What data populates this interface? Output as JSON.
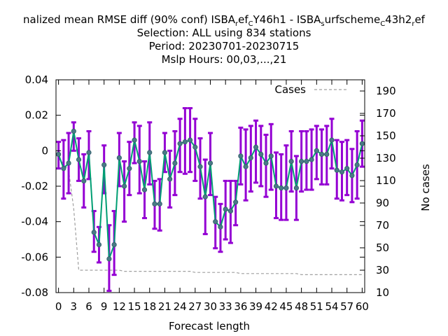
{
  "chart_data": {
    "type": "line",
    "title": {
      "prefix": "nalized mean RMSE diff (90% conf) ISBA",
      "sub1": "r",
      "mid1": "ef",
      "sub2": "C",
      "mid2": "Y46h1 - ISBA",
      "sub3": "s",
      "mid3": "urfscheme",
      "sub4": "C",
      "mid4": "43h2",
      "sub5": "r",
      "suffix": "ef"
    },
    "subtitle_lines": [
      "Selection: ALL using   834 stations",
      "Period: 20230701-20230715",
      "Mslp   Hours:  00,03,...,21"
    ],
    "xlabel": "Forecast length",
    "ylabel": "",
    "y2label": "No cases",
    "xlim": [
      -0.5,
      60.5
    ],
    "ylim": [
      -0.08,
      0.04
    ],
    "y2lim": [
      10,
      200
    ],
    "x_ticks": [
      0,
      3,
      6,
      9,
      12,
      15,
      18,
      21,
      24,
      27,
      30,
      33,
      36,
      39,
      42,
      45,
      48,
      51,
      54,
      57,
      60
    ],
    "x_tick_labels": [
      "0",
      "3",
      "6",
      "9",
      "12",
      "15",
      "18",
      "21",
      "24",
      "27",
      "30",
      "33",
      "36",
      "39",
      "42",
      "45",
      "48",
      "51",
      "54",
      "57",
      "60"
    ],
    "y_ticks": [
      -0.08,
      -0.06,
      -0.04,
      -0.02,
      0,
      0.02,
      0.04
    ],
    "y_tick_labels": [
      "-0.08",
      "-0.06",
      "-0.04",
      "-0.02",
      "0",
      "0.02",
      "0.04"
    ],
    "y2_ticks": [
      10,
      30,
      50,
      70,
      90,
      110,
      130,
      150,
      170,
      190
    ],
    "y2_tick_labels": [
      "10",
      "30",
      "50",
      "70",
      "90",
      "110",
      "130",
      "150",
      "170",
      "190"
    ],
    "legend": {
      "label": "Cases",
      "placement": "top-right"
    },
    "colors": {
      "errorbar": "#9400d3",
      "line": "#009e73",
      "cases": "#a0a0a0"
    },
    "series": [
      {
        "x": [
          0,
          1,
          2,
          3,
          4,
          5,
          6,
          7,
          8,
          9,
          10,
          11,
          12,
          13,
          14,
          15,
          16,
          17,
          18,
          19,
          20,
          21,
          22,
          23,
          24,
          25,
          26,
          27,
          28,
          29,
          30,
          31,
          32,
          33,
          34,
          35,
          36,
          37,
          38,
          39,
          40,
          41,
          42,
          43,
          44,
          45,
          46,
          47,
          48,
          49,
          50,
          51,
          52,
          53,
          54,
          55,
          56,
          57,
          58,
          59,
          60
        ],
        "y": [
          -0.002,
          -0.01,
          -0.007,
          0.011,
          -0.005,
          -0.017,
          -0.001,
          -0.046,
          -0.053,
          -0.008,
          -0.061,
          -0.053,
          -0.004,
          -0.02,
          -0.01,
          0.006,
          -0.006,
          -0.022,
          -0.001,
          -0.03,
          -0.03,
          -0.001,
          -0.016,
          -0.007,
          0.004,
          0.005,
          0.006,
          0.002,
          -0.009,
          -0.026,
          -0.007,
          -0.04,
          -0.043,
          -0.033,
          -0.034,
          -0.029,
          -0.003,
          -0.009,
          -0.004,
          0.002,
          -0.002,
          -0.007,
          -0.003,
          -0.02,
          -0.021,
          -0.021,
          -0.006,
          -0.021,
          -0.006,
          -0.006,
          -0.005,
          0.0,
          -0.002,
          -0.002,
          0.006,
          -0.011,
          -0.012,
          -0.01,
          -0.014,
          -0.008,
          0.004
        ],
        "y_low": [
          -0.01,
          -0.027,
          -0.024,
          0.0,
          -0.017,
          -0.032,
          -0.016,
          -0.057,
          -0.063,
          -0.024,
          -0.079,
          -0.07,
          -0.02,
          -0.04,
          -0.025,
          -0.007,
          -0.024,
          -0.038,
          -0.019,
          -0.044,
          -0.045,
          -0.012,
          -0.032,
          -0.025,
          -0.012,
          -0.013,
          -0.012,
          -0.017,
          -0.027,
          -0.047,
          -0.025,
          -0.055,
          -0.057,
          -0.05,
          -0.052,
          -0.042,
          -0.019,
          -0.028,
          -0.023,
          -0.018,
          -0.02,
          -0.026,
          -0.022,
          -0.038,
          -0.039,
          -0.039,
          -0.023,
          -0.039,
          -0.023,
          -0.022,
          -0.022,
          -0.016,
          -0.019,
          -0.019,
          -0.01,
          -0.027,
          -0.028,
          -0.025,
          -0.029,
          -0.027,
          -0.009
        ],
        "y_high": [
          0.005,
          0.006,
          0.01,
          0.016,
          0.007,
          -0.002,
          0.011,
          -0.034,
          -0.043,
          0.003,
          -0.042,
          -0.034,
          0.01,
          -0.006,
          0.005,
          0.016,
          0.014,
          -0.006,
          0.016,
          -0.017,
          -0.016,
          0.01,
          0.0,
          0.011,
          0.018,
          0.024,
          0.024,
          0.018,
          0.007,
          -0.005,
          0.01,
          -0.026,
          -0.03,
          -0.017,
          -0.017,
          -0.017,
          0.013,
          0.012,
          0.014,
          0.017,
          0.014,
          0.009,
          0.015,
          -0.001,
          -0.002,
          0.003,
          0.011,
          -0.003,
          0.011,
          0.011,
          0.012,
          0.014,
          0.012,
          0.014,
          0.018,
          0.006,
          0.005,
          0.006,
          0.001,
          0.011,
          0.017
        ]
      }
    ],
    "cases": {
      "name": "Cases",
      "x": [
        0,
        1,
        2,
        3,
        4,
        5,
        6,
        7,
        8,
        9,
        10,
        11,
        12,
        13,
        14,
        15,
        16,
        17,
        18,
        19,
        20,
        21,
        22,
        23,
        24,
        25,
        26,
        27,
        28,
        29,
        30,
        31,
        32,
        33,
        34,
        35,
        36,
        37,
        38,
        39,
        40,
        41,
        42,
        43,
        44,
        45,
        46,
        47,
        48,
        49,
        50,
        51,
        52,
        53,
        54,
        55,
        56,
        57,
        58,
        59,
        60
      ],
      "values": [
        130,
        125,
        119,
        85,
        30,
        30,
        30,
        30,
        30,
        30,
        30,
        30,
        30,
        29,
        29,
        29,
        29,
        29,
        29,
        29,
        29,
        29,
        29,
        29,
        29,
        29,
        29,
        28,
        28,
        28,
        28,
        28,
        28,
        28,
        28,
        28,
        27,
        27,
        27,
        27,
        27,
        27,
        27,
        27,
        27,
        27,
        27,
        27,
        26,
        26,
        26,
        26,
        26,
        26,
        26,
        26,
        26,
        26,
        26,
        26,
        26
      ]
    }
  }
}
